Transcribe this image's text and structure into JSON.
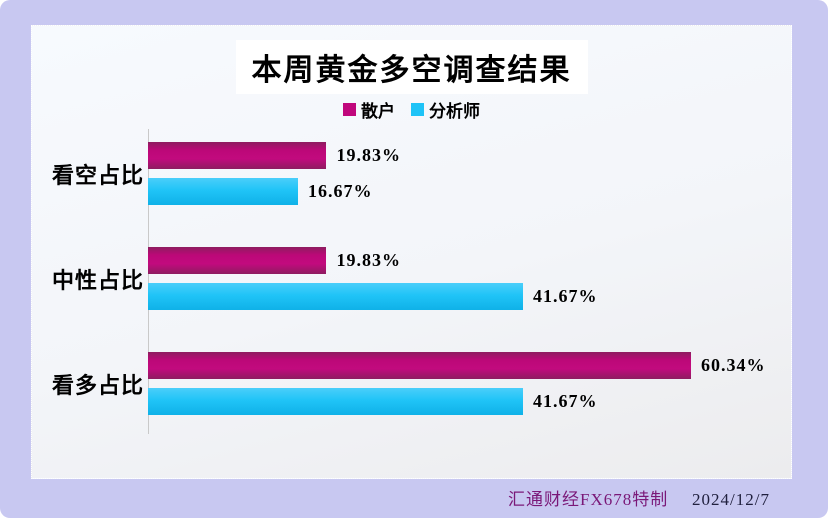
{
  "page": {
    "background_color": "#C8C8F1",
    "panel_background": "#F5F8FC",
    "title_box_background": "#FFFFFF"
  },
  "chart_data": {
    "type": "bar",
    "orientation": "horizontal",
    "title": "本周黄金多空调查结果",
    "categories": [
      "看空占比",
      "中性占比",
      "看多占比"
    ],
    "series": [
      {
        "name": "散户",
        "color": "#C0077C",
        "values": [
          19.83,
          19.83,
          60.34
        ],
        "labels": [
          "19.83%",
          "19.83%",
          "60.34%"
        ]
      },
      {
        "name": "分析师",
        "color": "#1EC3F7",
        "values": [
          16.67,
          41.67,
          41.67
        ],
        "labels": [
          "16.67%",
          "41.67%",
          "41.67%"
        ]
      }
    ],
    "value_suffix": "%",
    "xlim": [
      0,
      71.5
    ],
    "grid": false,
    "legend_position": "top"
  },
  "footer": {
    "credit": "汇通财经FX678特制",
    "date": "2024/12/7",
    "credit_color": "#7A1878",
    "date_color": "#20203E"
  }
}
